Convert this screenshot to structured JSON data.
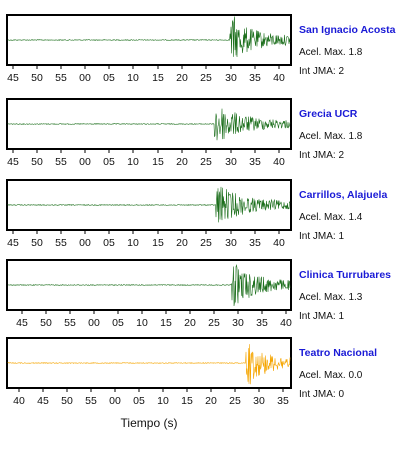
{
  "chart_data": [
    {
      "type": "line",
      "station": "San Ignacio Acosta",
      "acel_label": "Acel. Max. 1.8",
      "int_label": "Int JMA: 2",
      "color": "#1b6e1b",
      "x_ticks": [
        "45",
        "50",
        "55",
        "00",
        "05",
        "10",
        "15",
        "20",
        "25",
        "30",
        "35",
        "40"
      ],
      "onset_fraction": 0.785,
      "relative_amplitude": 1.0
    },
    {
      "type": "line",
      "station": "Grecia UCR",
      "acel_label": "Acel. Max. 1.8",
      "int_label": "Int JMA: 2",
      "color": "#1b6e1b",
      "x_ticks": [
        "45",
        "50",
        "55",
        "00",
        "05",
        "10",
        "15",
        "20",
        "25",
        "30",
        "35",
        "40"
      ],
      "onset_fraction": 0.73,
      "relative_amplitude": 1.0
    },
    {
      "type": "line",
      "station": "Carrillos, Alajuela",
      "acel_label": "Acel. Max. 1.4",
      "int_label": "Int JMA: 1",
      "color": "#1b6e1b",
      "x_ticks": [
        "45",
        "50",
        "55",
        "00",
        "05",
        "10",
        "15",
        "20",
        "25",
        "30",
        "35",
        "40"
      ],
      "onset_fraction": 0.735,
      "relative_amplitude": 1.0
    },
    {
      "type": "line",
      "station": "Clinica Turrubares",
      "acel_label": "Acel. Max. 1.3",
      "int_label": "Int JMA: 1",
      "color": "#1b6e1b",
      "x_ticks": [
        "45",
        "50",
        "55",
        "00",
        "05",
        "10",
        "15",
        "20",
        "25",
        "30",
        "35",
        "40"
      ],
      "onset_fraction": 0.79,
      "relative_amplitude": 1.0
    },
    {
      "type": "line",
      "station": "Teatro Nacional",
      "acel_label": "Acel. Max. 0.0",
      "int_label": "Int JMA: 0",
      "color": "#f5a500",
      "x_ticks": [
        "40",
        "45",
        "50",
        "55",
        "00",
        "05",
        "10",
        "15",
        "20",
        "25",
        "30",
        "35"
      ],
      "onset_fraction": 0.84,
      "relative_amplitude": 0.9
    }
  ],
  "xlabel": "Tiempo (s)"
}
